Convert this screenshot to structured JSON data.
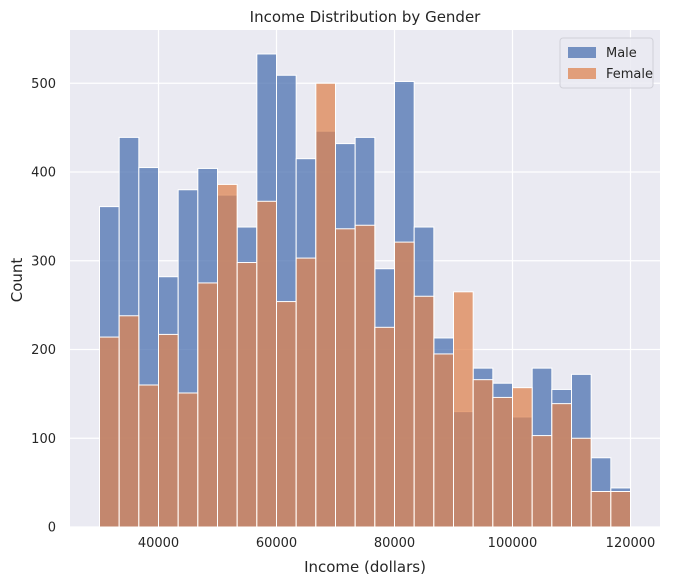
{
  "chart_data": {
    "type": "bar",
    "title": "Income Distribution by Gender",
    "xlabel": "Income (dollars)",
    "ylabel": "Count",
    "xlim": [
      25000,
      125000
    ],
    "ylim": [
      0,
      560
    ],
    "xticks": [
      40000,
      60000,
      80000,
      100000,
      120000
    ],
    "yticks": [
      0,
      100,
      200,
      300,
      400,
      500
    ],
    "grid": true,
    "legend_position": "top-right",
    "series": [
      {
        "name": "Male",
        "color": "#4c72b0",
        "bins": [
          [
            30000,
            33333,
            361
          ],
          [
            33333,
            36667,
            439
          ],
          [
            36667,
            40000,
            405
          ],
          [
            40000,
            43333,
            282
          ],
          [
            43333,
            46667,
            380
          ],
          [
            46667,
            50000,
            404
          ],
          [
            50000,
            53333,
            374
          ],
          [
            53333,
            56667,
            338
          ],
          [
            56667,
            60000,
            533
          ],
          [
            60000,
            63333,
            509
          ],
          [
            63333,
            66667,
            415
          ],
          [
            66667,
            70000,
            446
          ],
          [
            70000,
            73333,
            432
          ],
          [
            73333,
            76667,
            439
          ],
          [
            76667,
            80000,
            291
          ],
          [
            80000,
            83333,
            502
          ],
          [
            83333,
            86667,
            338
          ],
          [
            86667,
            90000,
            213
          ],
          [
            90000,
            93333,
            130
          ],
          [
            93333,
            96667,
            179
          ],
          [
            96667,
            100000,
            162
          ],
          [
            100000,
            103333,
            124
          ],
          [
            103333,
            106667,
            179
          ],
          [
            106667,
            110000,
            155
          ],
          [
            110000,
            113333,
            172
          ],
          [
            113333,
            116667,
            78
          ],
          [
            116667,
            120000,
            44
          ]
        ]
      },
      {
        "name": "Female",
        "color": "#dd8452",
        "bins": [
          [
            30000,
            33333,
            214
          ],
          [
            33333,
            36667,
            238
          ],
          [
            36667,
            40000,
            160
          ],
          [
            40000,
            43333,
            217
          ],
          [
            43333,
            46667,
            151
          ],
          [
            46667,
            50000,
            275
          ],
          [
            50000,
            53333,
            386
          ],
          [
            53333,
            56667,
            298
          ],
          [
            56667,
            60000,
            367
          ],
          [
            60000,
            63333,
            254
          ],
          [
            63333,
            66667,
            303
          ],
          [
            66667,
            70000,
            500
          ],
          [
            70000,
            73333,
            336
          ],
          [
            73333,
            76667,
            340
          ],
          [
            76667,
            80000,
            225
          ],
          [
            80000,
            83333,
            321
          ],
          [
            83333,
            86667,
            260
          ],
          [
            86667,
            90000,
            195
          ],
          [
            90000,
            93333,
            265
          ],
          [
            93333,
            96667,
            166
          ],
          [
            96667,
            100000,
            146
          ],
          [
            100000,
            103333,
            157
          ],
          [
            103333,
            106667,
            103
          ],
          [
            106667,
            110000,
            139
          ],
          [
            110000,
            113333,
            100
          ],
          [
            113333,
            116667,
            40
          ],
          [
            116667,
            120000,
            40
          ]
        ]
      }
    ]
  }
}
